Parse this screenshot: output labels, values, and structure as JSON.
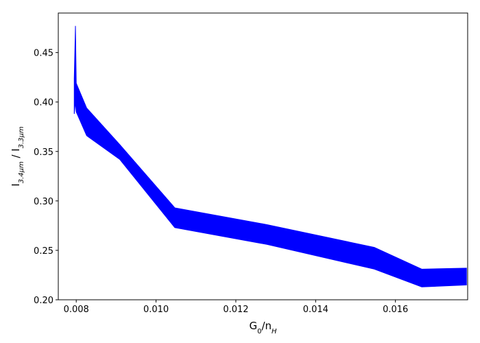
{
  "chart_data": {
    "type": "fill_between",
    "xlabel_parts": [
      "G",
      "0",
      "/n",
      "H"
    ],
    "ylabel_parts": [
      "I",
      "3.4μm",
      " / I",
      "3.3μm"
    ],
    "x": [
      0.00795,
      0.00798,
      0.008,
      0.00826,
      0.00909,
      0.01047,
      0.01278,
      0.01547,
      0.01666,
      0.01778
    ],
    "upper": [
      0.424,
      0.477,
      0.419,
      0.394,
      0.357,
      0.293,
      0.276,
      0.253,
      0.231,
      0.232
    ],
    "lower": [
      0.388,
      0.4,
      0.39,
      0.366,
      0.342,
      0.273,
      0.256,
      0.231,
      0.213,
      0.215
    ],
    "color": "#0000ff",
    "xlim": [
      0.00755,
      0.01781
    ],
    "ylim": [
      0.2,
      0.49
    ],
    "xticks": [
      0.008,
      {
        "value": 0.01,
        "label": "0.010"
      },
      0.012,
      0.014,
      0.016
    ],
    "yticks": [
      {
        "value": 0.2,
        "label": "0.20"
      },
      0.25,
      {
        "value": 0.3,
        "label": "0.30"
      },
      0.35,
      {
        "value": 0.4,
        "label": "0.40"
      },
      0.45
    ]
  }
}
